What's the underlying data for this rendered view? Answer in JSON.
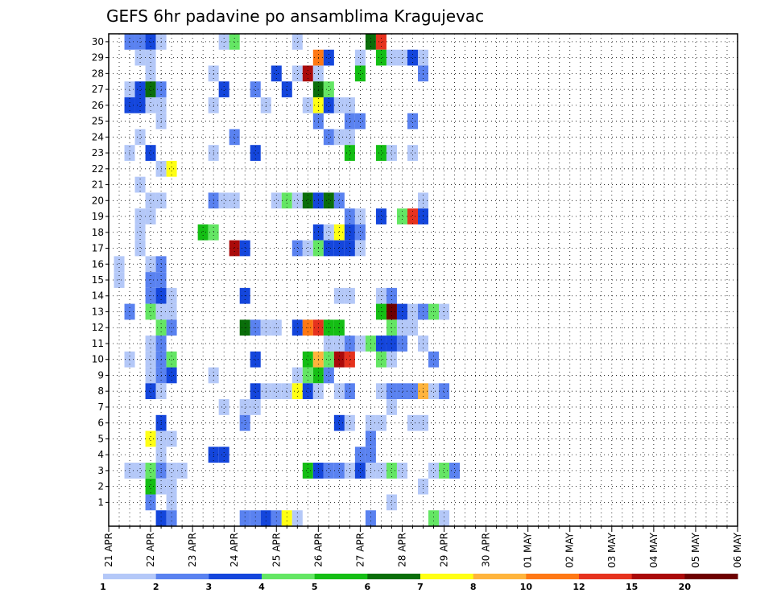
{
  "chart_data": {
    "type": "heatmap",
    "title": "GEFS 6hr padavine po ansamblima Kragujevac",
    "xlabel": "",
    "ylabel": "",
    "x_tick_labels": [
      "21 APR",
      "22 APR",
      "23 APR",
      "24 APR",
      "25 APR",
      "26 APR",
      "27 APR",
      "28 APR",
      "29 APR",
      "30 APR",
      "01 MAY",
      "02 MAY",
      "03 MAY",
      "04 MAY",
      "05 MAY",
      "06 MAY"
    ],
    "y_tick_labels": [
      1,
      2,
      3,
      4,
      5,
      6,
      7,
      8,
      9,
      10,
      11,
      12,
      13,
      14,
      15,
      16,
      17,
      18,
      19,
      20,
      21,
      22,
      23,
      24,
      25,
      26,
      27,
      28,
      29,
      30
    ],
    "time_steps": 61,
    "members": 31,
    "grid": true,
    "colorbar": {
      "position": "bottom",
      "labels": [
        "1",
        "2",
        "3",
        "4",
        "5",
        "6",
        "7",
        "8",
        "10",
        "12",
        "15",
        "20"
      ],
      "colors": [
        "#b4c8f8",
        "#5a82f0",
        "#1446dc",
        "#64e664",
        "#14be14",
        "#0a6e0a",
        "#ffff14",
        "#ffb43c",
        "#ff7814",
        "#e6321e",
        "#aa0a0a",
        "#6e0000"
      ]
    },
    "cells": [
      [
        2,
        30,
        1
      ],
      [
        3,
        30,
        1
      ],
      [
        4,
        30,
        2
      ],
      [
        5,
        30,
        0
      ],
      [
        11,
        30,
        0
      ],
      [
        12,
        30,
        3
      ],
      [
        18,
        30,
        0
      ],
      [
        25,
        30,
        5
      ],
      [
        26,
        30,
        9
      ],
      [
        3,
        29,
        0
      ],
      [
        4,
        29,
        0
      ],
      [
        20,
        29,
        8
      ],
      [
        21,
        29,
        2
      ],
      [
        24,
        29,
        0
      ],
      [
        26,
        29,
        4
      ],
      [
        27,
        29,
        0
      ],
      [
        28,
        29,
        0
      ],
      [
        29,
        29,
        2
      ],
      [
        30,
        29,
        0
      ],
      [
        4,
        28,
        0
      ],
      [
        10,
        28,
        0
      ],
      [
        16,
        28,
        2
      ],
      [
        18,
        28,
        0
      ],
      [
        19,
        28,
        10
      ],
      [
        20,
        28,
        0
      ],
      [
        24,
        28,
        4
      ],
      [
        30,
        28,
        1
      ],
      [
        2,
        27,
        0
      ],
      [
        3,
        27,
        2
      ],
      [
        4,
        27,
        5
      ],
      [
        5,
        27,
        1
      ],
      [
        11,
        27,
        2
      ],
      [
        14,
        27,
        1
      ],
      [
        17,
        27,
        2
      ],
      [
        20,
        27,
        5
      ],
      [
        21,
        27,
        3
      ],
      [
        2,
        26,
        2
      ],
      [
        3,
        26,
        2
      ],
      [
        4,
        26,
        0
      ],
      [
        5,
        26,
        0
      ],
      [
        10,
        26,
        0
      ],
      [
        15,
        26,
        0
      ],
      [
        19,
        26,
        0
      ],
      [
        20,
        26,
        6
      ],
      [
        21,
        26,
        2
      ],
      [
        22,
        26,
        0
      ],
      [
        23,
        26,
        0
      ],
      [
        5,
        25,
        0
      ],
      [
        20,
        25,
        1
      ],
      [
        23,
        25,
        1
      ],
      [
        24,
        25,
        1
      ],
      [
        29,
        25,
        1
      ],
      [
        3,
        24,
        0
      ],
      [
        12,
        24,
        1
      ],
      [
        21,
        24,
        1
      ],
      [
        22,
        24,
        0
      ],
      [
        23,
        24,
        0
      ],
      [
        2,
        23,
        0
      ],
      [
        4,
        23,
        2
      ],
      [
        10,
        23,
        0
      ],
      [
        14,
        23,
        2
      ],
      [
        23,
        23,
        4
      ],
      [
        26,
        23,
        4
      ],
      [
        27,
        23,
        0
      ],
      [
        29,
        23,
        0
      ],
      [
        5,
        22,
        0
      ],
      [
        6,
        22,
        6
      ],
      [
        3,
        21,
        0
      ],
      [
        4,
        20,
        0
      ],
      [
        5,
        20,
        0
      ],
      [
        10,
        20,
        1
      ],
      [
        11,
        20,
        0
      ],
      [
        12,
        20,
        0
      ],
      [
        16,
        20,
        0
      ],
      [
        17,
        20,
        3
      ],
      [
        18,
        20,
        0
      ],
      [
        19,
        20,
        5
      ],
      [
        20,
        20,
        2
      ],
      [
        21,
        20,
        5
      ],
      [
        22,
        20,
        1
      ],
      [
        30,
        20,
        0
      ],
      [
        3,
        19,
        0
      ],
      [
        4,
        19,
        0
      ],
      [
        23,
        19,
        1
      ],
      [
        24,
        19,
        0
      ],
      [
        26,
        19,
        2
      ],
      [
        28,
        19,
        3
      ],
      [
        29,
        19,
        9
      ],
      [
        30,
        19,
        2
      ],
      [
        3,
        18,
        0
      ],
      [
        9,
        18,
        4
      ],
      [
        10,
        18,
        3
      ],
      [
        20,
        18,
        2
      ],
      [
        21,
        18,
        0
      ],
      [
        22,
        18,
        6
      ],
      [
        23,
        18,
        2
      ],
      [
        24,
        18,
        1
      ],
      [
        3,
        17,
        0
      ],
      [
        12,
        17,
        10
      ],
      [
        13,
        17,
        2
      ],
      [
        18,
        17,
        1
      ],
      [
        19,
        17,
        0
      ],
      [
        20,
        17,
        3
      ],
      [
        21,
        17,
        2
      ],
      [
        22,
        17,
        2
      ],
      [
        23,
        17,
        2
      ],
      [
        24,
        17,
        0
      ],
      [
        1,
        16,
        0
      ],
      [
        4,
        16,
        0
      ],
      [
        5,
        16,
        1
      ],
      [
        1,
        15,
        0
      ],
      [
        4,
        15,
        1
      ],
      [
        5,
        15,
        1
      ],
      [
        4,
        14,
        1
      ],
      [
        5,
        14,
        2
      ],
      [
        6,
        14,
        0
      ],
      [
        13,
        14,
        2
      ],
      [
        22,
        14,
        0
      ],
      [
        23,
        14,
        0
      ],
      [
        26,
        14,
        0
      ],
      [
        27,
        14,
        1
      ],
      [
        2,
        13,
        1
      ],
      [
        4,
        13,
        3
      ],
      [
        5,
        13,
        0
      ],
      [
        6,
        13,
        0
      ],
      [
        26,
        13,
        4
      ],
      [
        27,
        13,
        11
      ],
      [
        28,
        13,
        2
      ],
      [
        29,
        13,
        0
      ],
      [
        30,
        13,
        1
      ],
      [
        31,
        13,
        3
      ],
      [
        32,
        13,
        0
      ],
      [
        5,
        12,
        3
      ],
      [
        6,
        12,
        1
      ],
      [
        13,
        12,
        5
      ],
      [
        14,
        12,
        1
      ],
      [
        15,
        12,
        0
      ],
      [
        16,
        12,
        0
      ],
      [
        18,
        12,
        2
      ],
      [
        19,
        12,
        8
      ],
      [
        20,
        12,
        9
      ],
      [
        21,
        12,
        4
      ],
      [
        22,
        12,
        4
      ],
      [
        27,
        12,
        3
      ],
      [
        28,
        12,
        0
      ],
      [
        29,
        12,
        0
      ],
      [
        4,
        11,
        0
      ],
      [
        5,
        11,
        1
      ],
      [
        21,
        11,
        0
      ],
      [
        22,
        11,
        0
      ],
      [
        23,
        11,
        1
      ],
      [
        24,
        11,
        0
      ],
      [
        25,
        11,
        3
      ],
      [
        26,
        11,
        2
      ],
      [
        27,
        11,
        2
      ],
      [
        28,
        11,
        1
      ],
      [
        30,
        11,
        0
      ],
      [
        2,
        10,
        0
      ],
      [
        4,
        10,
        0
      ],
      [
        5,
        10,
        1
      ],
      [
        6,
        10,
        3
      ],
      [
        14,
        10,
        2
      ],
      [
        19,
        10,
        4
      ],
      [
        20,
        10,
        7
      ],
      [
        21,
        10,
        3
      ],
      [
        22,
        10,
        10
      ],
      [
        23,
        10,
        9
      ],
      [
        26,
        10,
        3
      ],
      [
        27,
        10,
        0
      ],
      [
        31,
        10,
        1
      ],
      [
        4,
        9,
        0
      ],
      [
        5,
        9,
        1
      ],
      [
        6,
        9,
        2
      ],
      [
        10,
        9,
        0
      ],
      [
        18,
        9,
        0
      ],
      [
        19,
        9,
        3
      ],
      [
        20,
        9,
        4
      ],
      [
        21,
        9,
        1
      ],
      [
        4,
        8,
        2
      ],
      [
        5,
        8,
        0
      ],
      [
        14,
        8,
        2
      ],
      [
        15,
        8,
        0
      ],
      [
        16,
        8,
        0
      ],
      [
        17,
        8,
        0
      ],
      [
        18,
        8,
        6
      ],
      [
        19,
        8,
        2
      ],
      [
        20,
        8,
        0
      ],
      [
        22,
        8,
        0
      ],
      [
        23,
        8,
        1
      ],
      [
        26,
        8,
        0
      ],
      [
        27,
        8,
        1
      ],
      [
        28,
        8,
        1
      ],
      [
        29,
        8,
        1
      ],
      [
        30,
        8,
        7
      ],
      [
        31,
        8,
        0
      ],
      [
        32,
        8,
        1
      ],
      [
        11,
        7,
        0
      ],
      [
        13,
        7,
        0
      ],
      [
        14,
        7,
        0
      ],
      [
        27,
        7,
        0
      ],
      [
        5,
        6,
        2
      ],
      [
        13,
        6,
        1
      ],
      [
        22,
        6,
        2
      ],
      [
        23,
        6,
        0
      ],
      [
        25,
        6,
        0
      ],
      [
        26,
        6,
        0
      ],
      [
        29,
        6,
        0
      ],
      [
        30,
        6,
        0
      ],
      [
        4,
        5,
        6
      ],
      [
        5,
        5,
        0
      ],
      [
        6,
        5,
        0
      ],
      [
        25,
        5,
        1
      ],
      [
        5,
        4,
        0
      ],
      [
        10,
        4,
        2
      ],
      [
        11,
        4,
        2
      ],
      [
        24,
        4,
        1
      ],
      [
        25,
        4,
        1
      ],
      [
        2,
        3,
        0
      ],
      [
        3,
        3,
        0
      ],
      [
        4,
        3,
        3
      ],
      [
        5,
        3,
        1
      ],
      [
        6,
        3,
        0
      ],
      [
        7,
        3,
        0
      ],
      [
        19,
        3,
        4
      ],
      [
        20,
        3,
        2
      ],
      [
        21,
        3,
        1
      ],
      [
        22,
        3,
        1
      ],
      [
        23,
        3,
        0
      ],
      [
        24,
        3,
        2
      ],
      [
        25,
        3,
        0
      ],
      [
        26,
        3,
        0
      ],
      [
        27,
        3,
        3
      ],
      [
        28,
        3,
        0
      ],
      [
        31,
        3,
        0
      ],
      [
        32,
        3,
        3
      ],
      [
        33,
        3,
        1
      ],
      [
        4,
        2,
        4
      ],
      [
        5,
        2,
        0
      ],
      [
        6,
        2,
        0
      ],
      [
        30,
        2,
        0
      ],
      [
        4,
        1,
        1
      ],
      [
        6,
        1,
        0
      ],
      [
        27,
        1,
        0
      ],
      [
        5,
        0,
        2
      ],
      [
        6,
        0,
        1
      ],
      [
        13,
        0,
        1
      ],
      [
        14,
        0,
        1
      ],
      [
        15,
        0,
        2
      ],
      [
        16,
        0,
        1
      ],
      [
        17,
        0,
        6
      ],
      [
        18,
        0,
        0
      ],
      [
        25,
        0,
        1
      ],
      [
        31,
        0,
        3
      ],
      [
        32,
        0,
        0
      ]
    ]
  }
}
